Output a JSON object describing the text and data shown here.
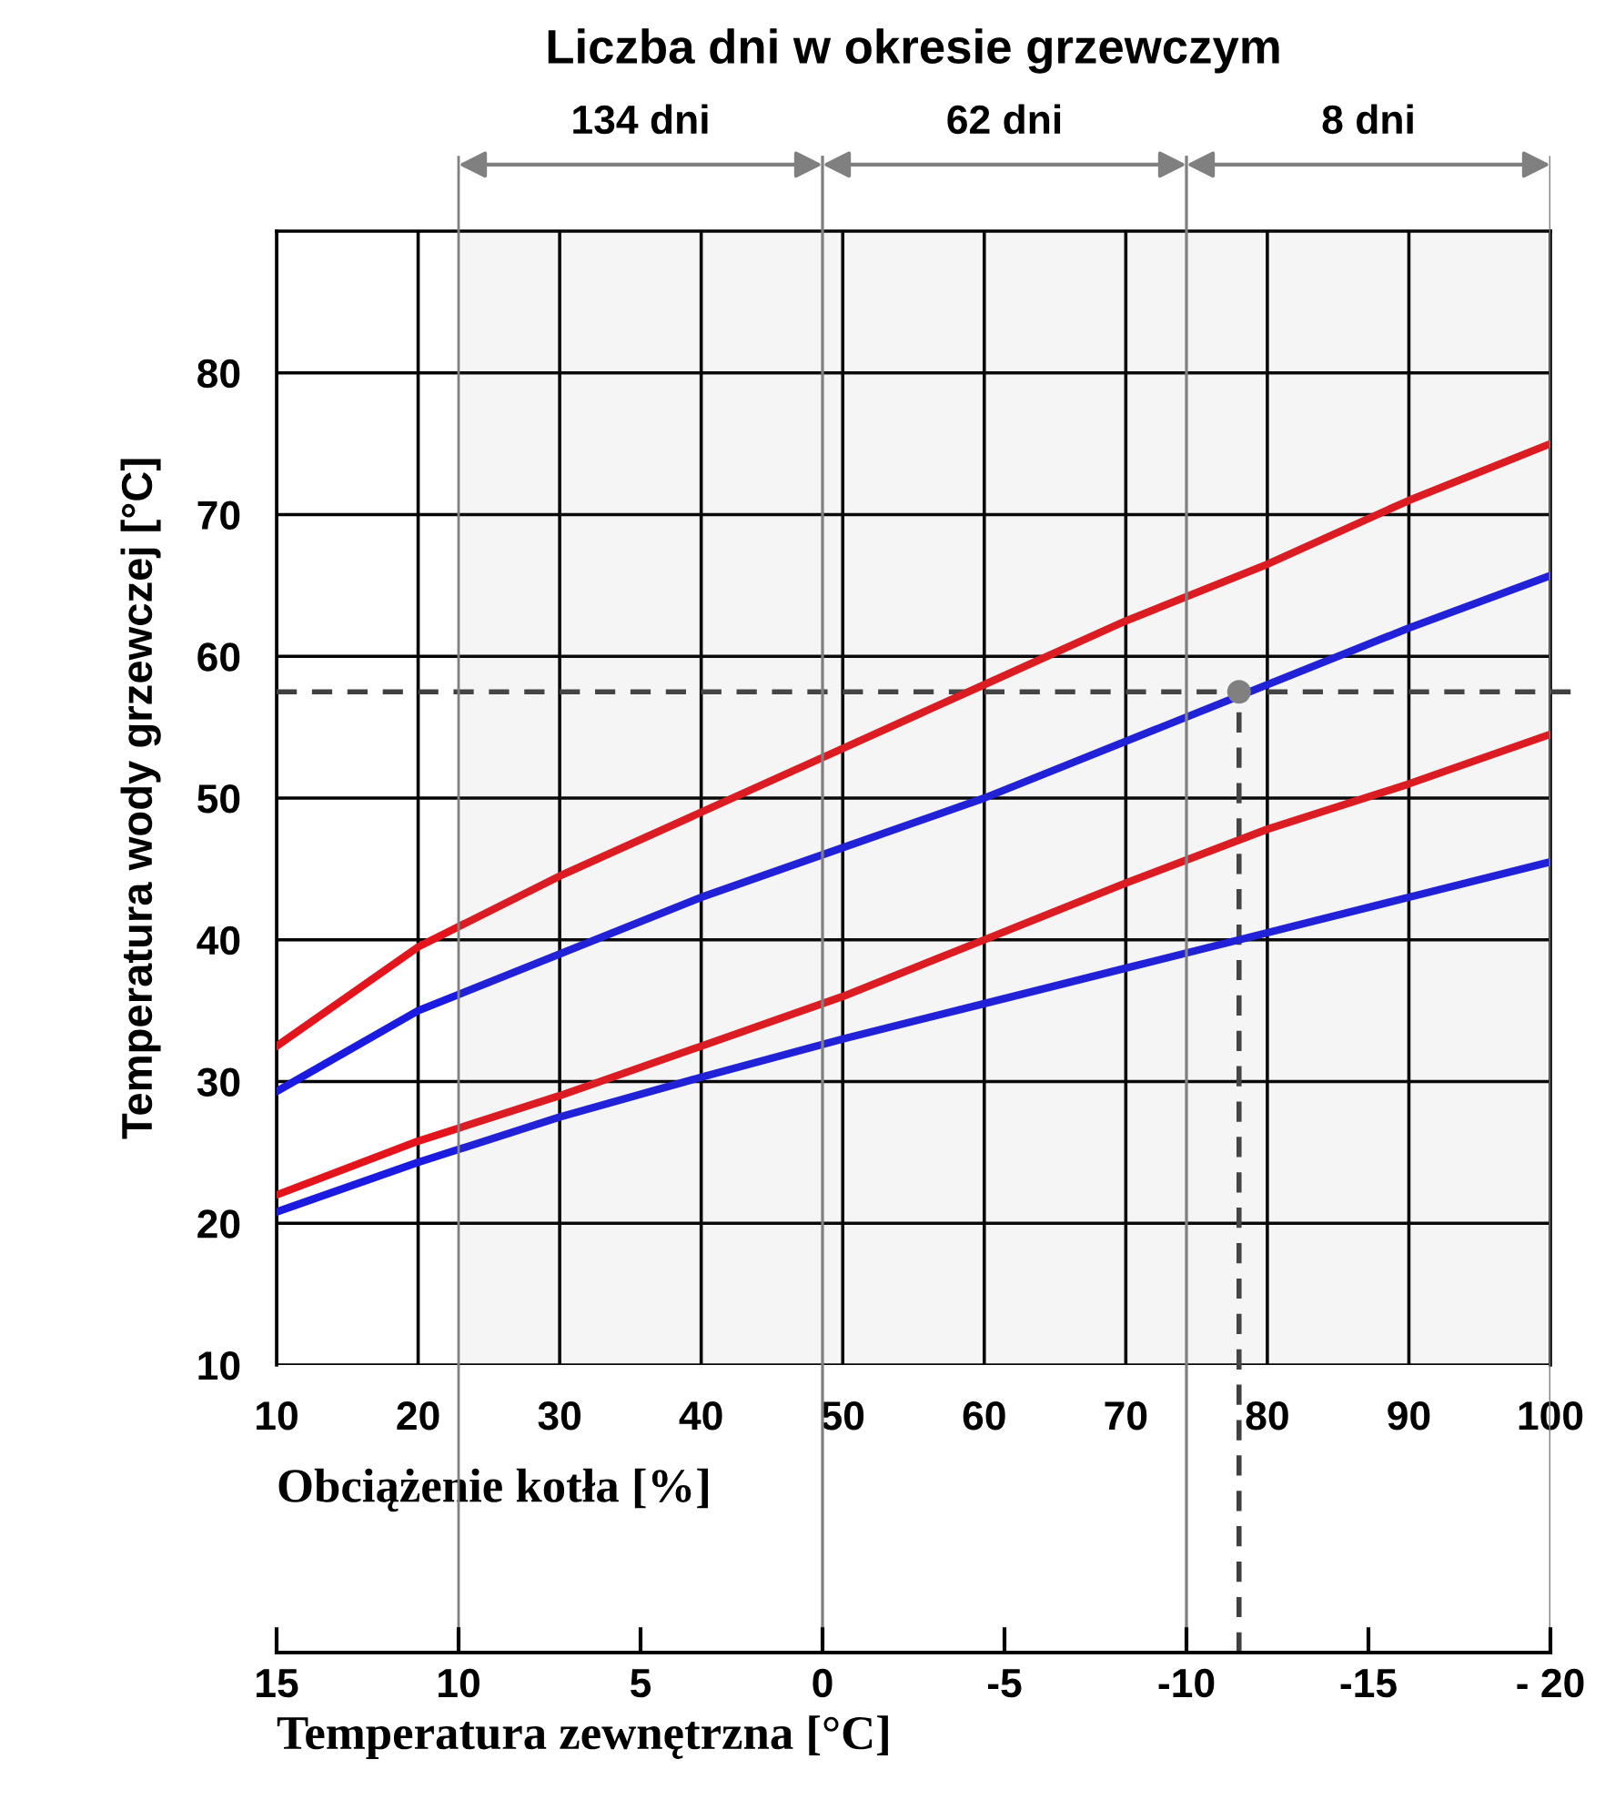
{
  "chart_data": {
    "type": "line",
    "title": "Liczba dni w okresie grzewczym",
    "xlabel": "Obciążenie kotła [%]",
    "ylabel": "Temperatura wody grzewczej [°C]",
    "x2label": "Temperatura zewnętrzna [°C]",
    "x": [
      10,
      20,
      30,
      40,
      50,
      60,
      70,
      80,
      90,
      100
    ],
    "series": [
      {
        "color": "#e3141c",
        "values": [
          32.5,
          39.5,
          44.5,
          49,
          53.5,
          58,
          62.5,
          66.5,
          71,
          75
        ]
      },
      {
        "color": "#1a1ae0",
        "values": [
          29.3,
          35,
          39,
          43,
          46.5,
          50,
          54,
          58,
          62,
          65.7
        ]
      },
      {
        "color": "#e3141c",
        "values": [
          22,
          25.8,
          29,
          32.5,
          36,
          40,
          44,
          47.8,
          51,
          54.5
        ]
      },
      {
        "color": "#1a1ae0",
        "values": [
          20.8,
          24.3,
          27.5,
          30.3,
          33,
          35.5,
          38,
          40.5,
          43,
          45.5
        ]
      },
      {
        "type": "scatter",
        "marker": "circle",
        "color": "#808080",
        "x": [
          78
        ],
        "values": [
          57.5
        ]
      }
    ],
    "xlim": [
      10,
      100
    ],
    "xticks": [
      10,
      20,
      30,
      40,
      50,
      60,
      70,
      80,
      90,
      100
    ],
    "ylim": [
      10,
      90
    ],
    "yticks": [
      10,
      20,
      30,
      40,
      50,
      60,
      70,
      80
    ],
    "x2lim": [
      15,
      -20
    ],
    "x2ticks": [
      15,
      10,
      5,
      0,
      -5,
      -10,
      -15,
      {
        "value": -20,
        "label": "- 20"
      }
    ],
    "ref_lines": [
      {
        "axis": "y",
        "value": 57.5,
        "color": "#404040",
        "line_style": "dashed"
      },
      {
        "axis": "x",
        "value": 78,
        "color": "#404040",
        "line_style": "dashed"
      }
    ],
    "bands": [
      {
        "axis": "x2",
        "from": 10,
        "to": 0,
        "label": "134 dni",
        "color": "#808080"
      },
      {
        "axis": "x2",
        "from": 0,
        "to": -10,
        "label": "62 dni",
        "color": "#808080"
      },
      {
        "axis": "x2",
        "from": -10,
        "to": -20,
        "label": "8 dni",
        "color": "#808080"
      }
    ],
    "grid": true,
    "marker": "none",
    "line_style": "solid"
  }
}
